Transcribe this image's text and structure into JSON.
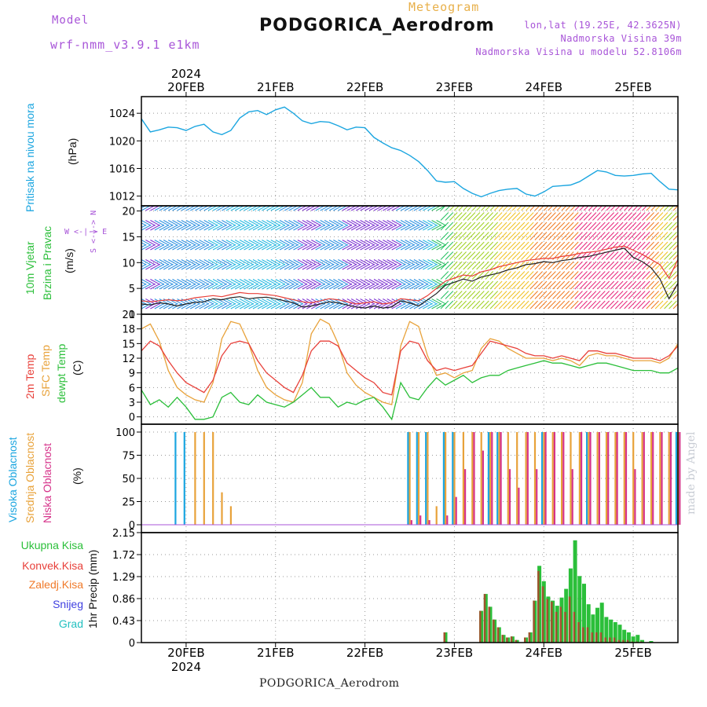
{
  "header": {
    "model_label": "Model",
    "model_name": "wrf-nmm_v3.9.1  e1km",
    "kind": "Meteogram",
    "title": "PODGORICA_Aerodrom",
    "lonlat": "lon,lat (19.25E, 42.3625N)",
    "elevation": "Nadmorska Visina 39m",
    "elevation_model": "Nadmorska Visina u modelu 52.8106m"
  },
  "time_axis": {
    "year": "2024",
    "day_labels": [
      "20FEB",
      "21FEB",
      "22FEB",
      "23FEB",
      "24FEB",
      "25FEB"
    ],
    "x_range": [
      -0.5,
      5.5
    ]
  },
  "panels": {
    "pressure": {
      "label_1": "Pritisak na nivou mora",
      "label_2": "(hPa)",
      "color": "#1ca6e0"
    },
    "wind": {
      "label_1": "10m Vjetar",
      "label_2": "Brzina i Pravac",
      "label_3": "(m/s)",
      "compass": "W <-|-> E",
      "compass_ns": "S <-|-> N",
      "color": "#2bbf3a"
    },
    "temp": {
      "label_t2": "2m Temp",
      "label_sfc": "SFC Temp",
      "label_dew": "dewpt Temp",
      "label_unit": "(C)",
      "colors": {
        "t2": "#e8403a",
        "sfc": "#e8a23a",
        "dew": "#2bbf3a"
      }
    },
    "cloud": {
      "label_high": "Visoka Oblacnost",
      "label_mid": "Srednja Oblacnost",
      "label_low": "Niska Oblacnost",
      "label_unit": "(%)",
      "colors": {
        "high": "#1ca6e0",
        "mid": "#e8a23a",
        "low": "#d6338a"
      }
    },
    "precip": {
      "label_axis": "1hr Precip (mm)",
      "legend": [
        "Ukupna Kisa",
        "Konvek.Kisa",
        "Zaledj.Kisa",
        "Snijeg",
        "Grad"
      ],
      "legend_colors": [
        "#2bbf3a",
        "#e8403a",
        "#f07a2a",
        "#4040e0",
        "#22c0c0"
      ]
    }
  },
  "footer": "PODGORICA_Aerodrom",
  "credit": "made by Angel",
  "chart_data": [
    {
      "type": "line",
      "title": "Pritisak na nivou mora",
      "ylabel": "(hPa)",
      "ylim": [
        1011.5,
        1025.5
      ],
      "yticks": [
        1012,
        1016,
        1020,
        1024
      ],
      "grid": true,
      "x": [
        -0.5,
        -0.4,
        -0.3,
        -0.2,
        -0.1,
        0,
        0.1,
        0.2,
        0.3,
        0.4,
        0.5,
        0.6,
        0.7,
        0.8,
        0.9,
        1,
        1.1,
        1.2,
        1.3,
        1.4,
        1.5,
        1.6,
        1.7,
        1.8,
        1.9,
        2,
        2.1,
        2.2,
        2.3,
        2.4,
        2.5,
        2.6,
        2.7,
        2.8,
        2.9,
        3,
        3.1,
        3.2,
        3.3,
        3.4,
        3.5,
        3.6,
        3.7,
        3.8,
        3.9,
        4,
        4.1,
        4.2,
        4.3,
        4.4,
        4.5,
        4.6,
        4.7,
        4.8,
        4.9,
        5,
        5.1,
        5.2,
        5.3,
        5.4,
        5.5
      ],
      "series": [
        {
          "values": [
            1023.2,
            1021.3,
            1021.6,
            1022.0,
            1021.9,
            1021.5,
            1022.1,
            1022.4,
            1021.3,
            1020.9,
            1021.5,
            1023.3,
            1024.2,
            1024.4,
            1023.8,
            1024.5,
            1024.9,
            1024.0,
            1022.9,
            1022.5,
            1022.8,
            1022.7,
            1022.2,
            1021.6,
            1022.0,
            1021.9,
            1020.5,
            1019.7,
            1019.0,
            1018.6,
            1017.9,
            1017.0,
            1015.7,
            1014.2,
            1014.0,
            1014.1,
            1013.1,
            1012.4,
            1011.9,
            1012.4,
            1012.8,
            1013.0,
            1013.1,
            1012.3,
            1012.0,
            1012.6,
            1013.4,
            1013.5,
            1013.6,
            1014.1,
            1014.9,
            1015.7,
            1015.5,
            1015.0,
            1014.9,
            1015.0,
            1015.2,
            1015.3,
            1014.1,
            1013.0,
            1012.9
          ]
        }
      ]
    },
    {
      "type": "line",
      "title": "10m Vjetar Brzina i Pravac",
      "ylabel": "(m/s)",
      "ylim": [
        0,
        21
      ],
      "yticks": [
        0,
        5,
        10,
        15,
        20
      ],
      "grid": true,
      "x": [
        -0.5,
        -0.4,
        -0.3,
        -0.2,
        -0.1,
        0,
        0.1,
        0.2,
        0.3,
        0.4,
        0.5,
        0.6,
        0.7,
        0.8,
        0.9,
        1,
        1.1,
        1.2,
        1.3,
        1.4,
        1.5,
        1.6,
        1.7,
        1.8,
        1.9,
        2,
        2.1,
        2.2,
        2.3,
        2.4,
        2.5,
        2.6,
        2.7,
        2.8,
        2.9,
        3,
        3.1,
        3.2,
        3.3,
        3.4,
        3.5,
        3.6,
        3.7,
        3.8,
        3.9,
        4,
        4.1,
        4.2,
        4.3,
        4.4,
        4.5,
        4.6,
        4.7,
        4.8,
        4.9,
        5,
        5.1,
        5.2,
        5.3,
        5.4,
        5.5
      ],
      "series": [
        {
          "values": [
            2.0,
            1.8,
            2.2,
            2.0,
            1.6,
            2.0,
            2.3,
            2.4,
            3.0,
            2.8,
            3.2,
            3.4,
            3.0,
            3.2,
            3.3,
            3.0,
            2.6,
            2.2,
            1.4,
            1.6,
            2.0,
            2.4,
            2.2,
            1.8,
            1.4,
            1.2,
            1.6,
            1.2,
            1.4,
            2.6,
            2.2,
            1.6,
            2.8,
            4.0,
            5.6,
            6.2,
            6.8,
            6.4,
            7.2,
            7.6,
            8.0,
            8.6,
            9.0,
            9.6,
            9.8,
            10.2,
            10.0,
            10.4,
            10.6,
            11.0,
            11.2,
            11.6,
            12.0,
            12.4,
            12.8,
            11.0,
            10.2,
            9.0,
            6.8,
            3.0,
            6.0
          ]
        },
        {
          "values": [
            2.6,
            2.4,
            2.6,
            2.8,
            2.6,
            2.8,
            3.2,
            3.4,
            3.6,
            3.4,
            3.8,
            4.2,
            4.0,
            4.0,
            3.8,
            3.6,
            3.2,
            2.8,
            2.4,
            2.2,
            2.6,
            3.0,
            2.8,
            2.4,
            2.0,
            2.2,
            2.4,
            2.0,
            2.2,
            3.0,
            2.8,
            2.6,
            3.6,
            5.0,
            6.4,
            7.0,
            7.6,
            7.4,
            8.2,
            8.6,
            9.2,
            9.6,
            10.0,
            10.4,
            10.6,
            10.8,
            10.8,
            11.2,
            11.4,
            11.8,
            12.0,
            12.2,
            12.6,
            13.0,
            13.2,
            12.4,
            11.6,
            10.6,
            9.6,
            7.0,
            10.6
          ]
        }
      ]
    },
    {
      "type": "line",
      "title": "Temperature",
      "ylabel": "(C)",
      "ylim": [
        -1.5,
        21
      ],
      "yticks": [
        0,
        3,
        6,
        9,
        12,
        15,
        18,
        21
      ],
      "grid": true,
      "x": [
        -0.5,
        -0.4,
        -0.3,
        -0.2,
        -0.1,
        0,
        0.1,
        0.2,
        0.3,
        0.4,
        0.5,
        0.6,
        0.7,
        0.8,
        0.9,
        1,
        1.1,
        1.2,
        1.3,
        1.4,
        1.5,
        1.6,
        1.7,
        1.8,
        1.9,
        2,
        2.1,
        2.2,
        2.3,
        2.4,
        2.5,
        2.6,
        2.7,
        2.8,
        2.9,
        3,
        3.1,
        3.2,
        3.3,
        3.4,
        3.5,
        3.6,
        3.7,
        3.8,
        3.9,
        4,
        4.1,
        4.2,
        4.3,
        4.4,
        4.5,
        4.6,
        4.7,
        4.8,
        4.9,
        5,
        5.1,
        5.2,
        5.3,
        5.4,
        5.5
      ],
      "series": [
        {
          "name": "2m Temp",
          "values": [
            13.5,
            15.5,
            14.5,
            11.5,
            9.0,
            7.0,
            6.0,
            5.0,
            7.5,
            12.5,
            15.0,
            15.5,
            15.0,
            11.5,
            9.0,
            7.5,
            6.0,
            5.0,
            8.5,
            13.5,
            15.5,
            15.5,
            14.5,
            11.0,
            9.5,
            8.0,
            7.0,
            5.0,
            4.5,
            13.5,
            15.5,
            15.0,
            11.5,
            9.5,
            10.0,
            9.5,
            10.0,
            10.5,
            13.0,
            15.5,
            15.0,
            14.5,
            14.0,
            13.0,
            12.5,
            12.5,
            12.0,
            12.5,
            12.0,
            11.5,
            13.5,
            13.5,
            13.0,
            13.0,
            12.5,
            12.0,
            12.0,
            12.0,
            11.5,
            12.5,
            14.5
          ]
        },
        {
          "name": "SFC Temp",
          "values": [
            18.0,
            19.0,
            15.5,
            9.5,
            6.0,
            4.5,
            3.5,
            3.0,
            7.0,
            16.0,
            19.5,
            19.0,
            15.0,
            9.5,
            6.0,
            4.5,
            3.5,
            3.0,
            7.0,
            17.0,
            20.0,
            19.0,
            15.0,
            9.0,
            6.5,
            5.0,
            4.0,
            3.0,
            2.5,
            14.5,
            19.5,
            18.5,
            12.5,
            8.5,
            9.0,
            8.0,
            9.0,
            9.5,
            14.0,
            16.0,
            15.5,
            14.0,
            13.0,
            12.0,
            12.0,
            12.0,
            11.5,
            12.0,
            11.5,
            10.5,
            12.5,
            13.0,
            12.5,
            12.5,
            12.0,
            11.5,
            11.5,
            11.5,
            11.0,
            12.0,
            15.0
          ]
        },
        {
          "name": "dewpt Temp",
          "values": [
            5.5,
            2.5,
            3.5,
            2.0,
            4.0,
            2.0,
            -0.5,
            -0.5,
            0.0,
            4.0,
            5.0,
            3.0,
            2.5,
            4.5,
            3.0,
            2.5,
            2.0,
            3.0,
            4.5,
            6.0,
            4.0,
            4.0,
            2.0,
            3.0,
            2.5,
            3.5,
            4.0,
            2.0,
            -0.5,
            7.0,
            4.0,
            3.5,
            6.0,
            8.0,
            6.5,
            7.5,
            8.5,
            7.0,
            8.0,
            8.5,
            8.5,
            9.5,
            10.0,
            10.5,
            11.0,
            11.5,
            11.0,
            11.0,
            10.5,
            10.0,
            10.5,
            11.0,
            11.0,
            10.5,
            10.0,
            9.5,
            9.5,
            9.5,
            9.0,
            9.0,
            10.0
          ]
        }
      ]
    },
    {
      "type": "bar",
      "title": "Oblacnost",
      "ylabel": "(%)",
      "ylim": [
        0,
        100
      ],
      "yticks": [
        0,
        25,
        50,
        75,
        100
      ],
      "grid": true,
      "x": [
        -0.5,
        -0.4,
        -0.3,
        -0.2,
        -0.1,
        0,
        0.1,
        0.2,
        0.3,
        0.4,
        0.5,
        0.6,
        0.7,
        0.8,
        0.9,
        1,
        1.1,
        1.2,
        1.3,
        1.4,
        1.5,
        1.6,
        1.7,
        1.8,
        1.9,
        2,
        2.1,
        2.2,
        2.3,
        2.4,
        2.5,
        2.6,
        2.7,
        2.8,
        2.9,
        3,
        3.1,
        3.2,
        3.3,
        3.4,
        3.5,
        3.6,
        3.7,
        3.8,
        3.9,
        4,
        4.1,
        4.2,
        4.3,
        4.4,
        4.5,
        4.6,
        4.7,
        4.8,
        4.9,
        5,
        5.1,
        5.2,
        5.3,
        5.4,
        5.5
      ],
      "series": [
        {
          "name": "Visoka Oblacnost",
          "values": [
            0,
            0,
            0,
            0,
            100,
            100,
            0,
            0,
            0,
            0,
            0,
            0,
            0,
            0,
            0,
            0,
            0,
            0,
            0,
            0,
            0,
            0,
            0,
            0,
            0,
            0,
            0,
            0,
            0,
            0,
            100,
            100,
            100,
            0,
            100,
            100,
            0,
            0,
            0,
            100,
            100,
            0,
            0,
            0,
            0,
            100,
            0,
            0,
            0,
            0,
            100,
            0,
            0,
            0,
            0,
            0,
            0,
            0,
            0,
            0,
            100
          ]
        },
        {
          "name": "Srednja Oblacnost",
          "values": [
            0,
            0,
            0,
            0,
            0,
            0,
            100,
            100,
            100,
            35,
            20,
            0,
            0,
            0,
            0,
            0,
            0,
            0,
            0,
            0,
            0,
            0,
            0,
            0,
            0,
            0,
            0,
            0,
            0,
            0,
            100,
            100,
            100,
            20,
            100,
            100,
            100,
            100,
            100,
            100,
            100,
            100,
            100,
            100,
            100,
            100,
            100,
            100,
            100,
            100,
            100,
            100,
            100,
            100,
            100,
            100,
            100,
            100,
            100,
            100,
            100
          ]
        },
        {
          "name": "Niska Oblacnost",
          "values": [
            0,
            0,
            0,
            0,
            0,
            0,
            0,
            0,
            0,
            0,
            0,
            0,
            0,
            0,
            0,
            0,
            0,
            0,
            0,
            0,
            0,
            0,
            0,
            0,
            0,
            0,
            0,
            0,
            0,
            0,
            5,
            10,
            5,
            0,
            10,
            30,
            60,
            100,
            80,
            100,
            100,
            60,
            40,
            100,
            60,
            100,
            100,
            100,
            60,
            100,
            100,
            100,
            100,
            100,
            100,
            60,
            100,
            100,
            100,
            100,
            100
          ]
        }
      ]
    },
    {
      "type": "bar",
      "title": "1hr Precip",
      "ylabel": "1hr Precip (mm)",
      "ylim": [
        0,
        2.15
      ],
      "yticks": [
        0,
        0.43,
        0.86,
        1.29,
        1.72,
        2.15
      ],
      "grid": true,
      "x": [
        2.9,
        3.3,
        3.35,
        3.4,
        3.45,
        3.5,
        3.55,
        3.6,
        3.65,
        3.7,
        3.8,
        3.85,
        3.9,
        3.95,
        4.0,
        4.05,
        4.1,
        4.15,
        4.2,
        4.25,
        4.3,
        4.35,
        4.4,
        4.45,
        4.5,
        4.55,
        4.6,
        4.65,
        4.7,
        4.75,
        4.8,
        4.85,
        4.9,
        4.95,
        5.0,
        5.05,
        5.1,
        5.2
      ],
      "series": [
        {
          "name": "Ukupna Kisa",
          "values": [
            0.2,
            0.62,
            0.95,
            0.7,
            0.45,
            0.3,
            0.15,
            0.1,
            0.12,
            0.05,
            0.1,
            0.2,
            0.82,
            1.5,
            1.2,
            0.9,
            0.82,
            0.72,
            0.88,
            1.05,
            1.45,
            2.0,
            1.3,
            1.15,
            0.75,
            0.55,
            0.68,
            0.78,
            0.5,
            0.45,
            0.4,
            0.35,
            0.25,
            0.2,
            0.12,
            0.15,
            0.05,
            0.03
          ]
        },
        {
          "name": "Konvek.Kisa",
          "values": [
            0.2,
            0.62,
            0.95,
            0.7,
            0.45,
            0.3,
            0.15,
            0.1,
            0.12,
            0.05,
            0.1,
            0.2,
            0.82,
            1.4,
            1.1,
            0.85,
            0.8,
            0.6,
            0.7,
            0.6,
            0.9,
            0.6,
            0.4,
            0.3,
            0.3,
            0.2,
            0.2,
            0.2,
            0.1,
            0.1,
            0.1,
            0.05,
            0.05,
            0.05,
            0.02,
            0.02,
            0.02,
            0.0
          ]
        }
      ]
    }
  ]
}
